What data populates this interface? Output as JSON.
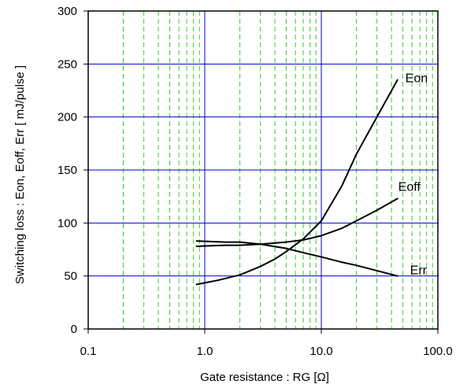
{
  "chart_data": {
    "type": "line",
    "xlabel": "Gate resistance : RG [Ω]",
    "ylabel": "Switching loss  :  Eon, Eoff, Err  [ mJ/pulse ]",
    "x_scale": "log",
    "xlim": [
      0.1,
      100
    ],
    "ylim": [
      0,
      300
    ],
    "x_tick_values": [
      0.1,
      1.0,
      10.0,
      100.0
    ],
    "x_tick_labels": [
      "0.1",
      "1.0",
      "10.0",
      "100.0"
    ],
    "y_tick_values": [
      0,
      50,
      100,
      150,
      200,
      250,
      300
    ],
    "y_tick_labels": [
      "0",
      "50",
      "100",
      "150",
      "200",
      "250",
      "300"
    ],
    "grid": {
      "major": true,
      "minor_x": true,
      "major_color": "#0000cc",
      "minor_color": "#33cc33"
    },
    "series": [
      {
        "name": "Eon",
        "color": "#000000",
        "x": [
          0.85,
          1.3,
          2.0,
          3.0,
          4.0,
          5.0,
          7.0,
          10.0,
          15.0,
          20.0,
          30.0,
          45.0
        ],
        "y": [
          42,
          46,
          51,
          59,
          66,
          73,
          85,
          102,
          135,
          165,
          200,
          235
        ]
      },
      {
        "name": "Eoff",
        "color": "#000000",
        "x": [
          0.85,
          1.5,
          2.0,
          3.0,
          5.0,
          7.0,
          10.0,
          15.0,
          20.0,
          30.0,
          45.0
        ],
        "y": [
          78,
          79,
          79,
          80,
          82,
          84,
          88,
          95,
          102,
          112,
          123
        ]
      },
      {
        "name": "Err",
        "color": "#000000",
        "x": [
          0.85,
          1.5,
          2.0,
          3.0,
          5.0,
          7.0,
          10.0,
          15.0,
          20.0,
          30.0,
          45.0
        ],
        "y": [
          83,
          82,
          82,
          80,
          76,
          72,
          68,
          63,
          60,
          55,
          50
        ]
      }
    ]
  }
}
